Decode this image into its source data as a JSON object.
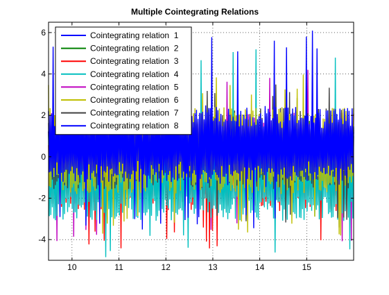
{
  "chart_data": {
    "type": "line",
    "title": "Multiple Cointegrating Relations",
    "xlabel": "",
    "ylabel": "",
    "xlim": [
      9.5,
      16
    ],
    "ylim": [
      -5,
      6.5
    ],
    "xticks": [
      10,
      11,
      12,
      13,
      14,
      15
    ],
    "yticks": [
      -4,
      -2,
      0,
      2,
      4,
      6
    ],
    "grid": true,
    "legend_position": "top-left",
    "series": [
      {
        "name": "Cointegrating relation  1",
        "color": "#0000ff",
        "center": 0.5,
        "amplitude": 1.0,
        "peak_high": 2.5,
        "peak_low": -1.5
      },
      {
        "name": "Cointegrating relation  2",
        "color": "#008000",
        "center": 0.2,
        "amplitude": 0.9,
        "peak_high": 2.0,
        "peak_low": -1.8
      },
      {
        "name": "Cointegrating relation  3",
        "color": "#ff0000",
        "center": -0.8,
        "amplitude": 1.3,
        "peak_high": 1.5,
        "peak_low": -4.5
      },
      {
        "name": "Cointegrating relation  4",
        "color": "#00bfbf",
        "center": -1.0,
        "amplitude": 1.5,
        "peak_high": 5.3,
        "peak_low": -4.9
      },
      {
        "name": "Cointegrating relation  5",
        "color": "#bf00bf",
        "center": 0.2,
        "amplitude": 1.4,
        "peak_high": 4.5,
        "peak_low": -4.2
      },
      {
        "name": "Cointegrating relation  6",
        "color": "#bfbf00",
        "center": 0.3,
        "amplitude": 1.5,
        "peak_high": 4.0,
        "peak_low": -3.8
      },
      {
        "name": "Cointegrating relation  7",
        "color": "#404040",
        "center": 0.4,
        "amplitude": 1.4,
        "peak_high": 3.6,
        "peak_low": -3.7
      },
      {
        "name": "Cointegrating relation  8",
        "color": "#0000ff",
        "center": 0.6,
        "amplitude": 1.3,
        "peak_high": 6.3,
        "peak_low": -3.6
      }
    ]
  }
}
